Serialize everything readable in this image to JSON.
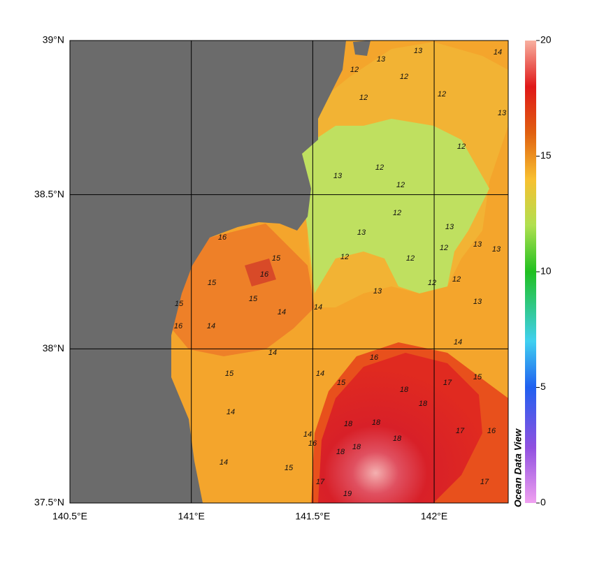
{
  "map": {
    "xlim": [
      140.5,
      142.305
    ],
    "ylim": [
      37.5,
      39
    ],
    "xticks": [
      {
        "value": 140.5,
        "label": "140.5°E"
      },
      {
        "value": 141,
        "label": "141°E"
      },
      {
        "value": 141.5,
        "label": "141.5°E"
      },
      {
        "value": 142,
        "label": "142°E"
      }
    ],
    "yticks": [
      {
        "value": 37.5,
        "label": "37.5°N"
      },
      {
        "value": 38,
        "label": "38°N"
      },
      {
        "value": 38.5,
        "label": "38.5°N"
      },
      {
        "value": 39,
        "label": "39°N"
      }
    ],
    "colorbar": {
      "lim": [
        0,
        20
      ],
      "ticks": [
        0,
        5,
        10,
        15,
        20
      ],
      "label": "Ocean Data View"
    },
    "contour_labels": [
      13,
      12,
      13,
      12,
      12,
      13,
      14,
      12,
      12,
      12,
      12,
      13,
      12,
      13,
      12,
      12,
      13,
      12,
      12,
      12,
      13,
      13,
      13,
      13,
      14,
      14,
      14,
      15,
      15,
      16,
      15,
      14,
      16,
      15,
      14,
      16,
      15,
      14,
      15,
      17,
      18,
      18,
      18,
      18,
      18,
      17,
      16,
      16,
      14,
      18,
      18,
      19,
      17,
      17,
      15,
      14,
      15,
      14,
      16
    ]
  }
}
